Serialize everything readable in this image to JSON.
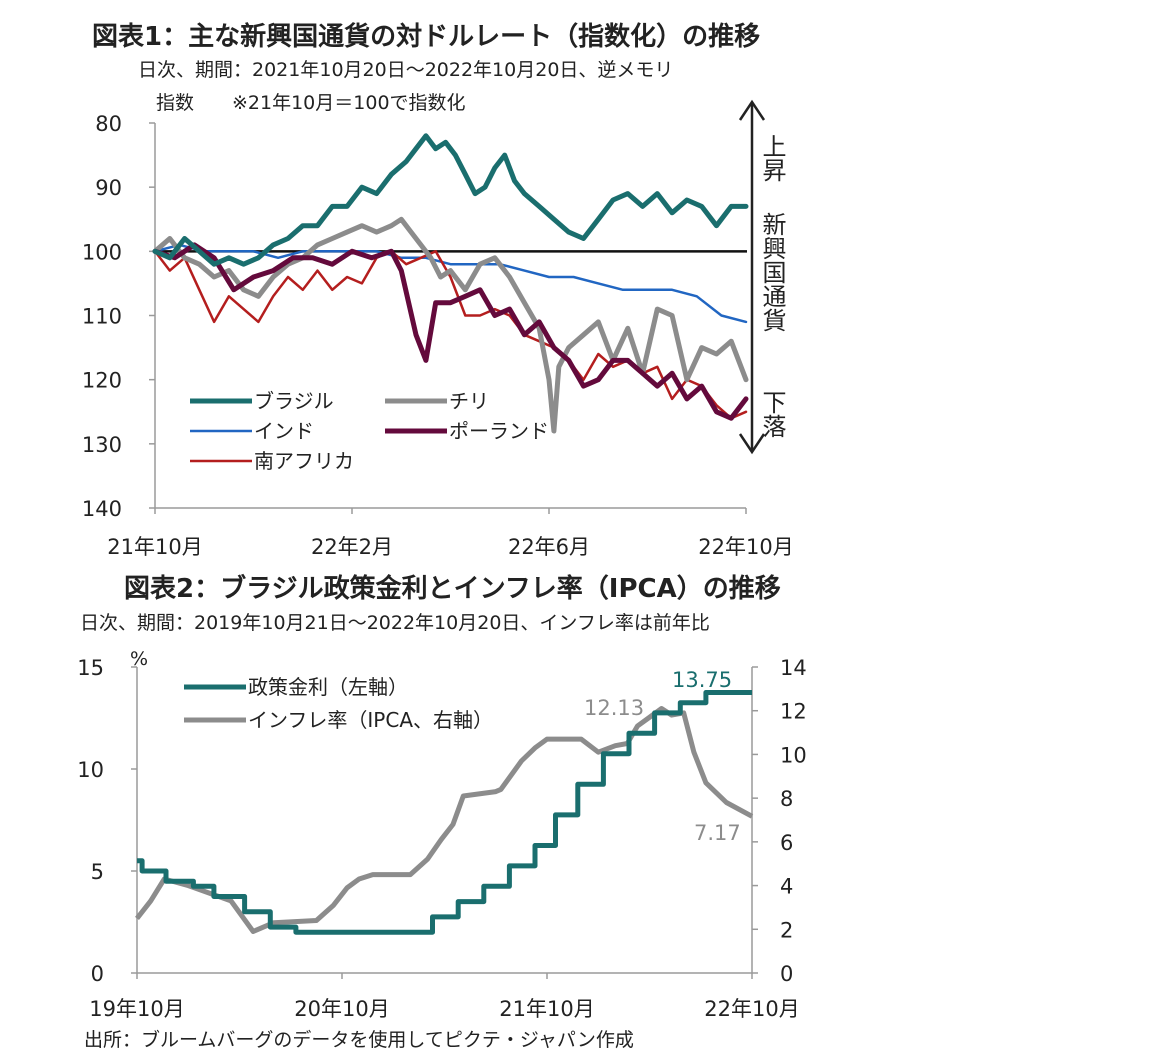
{
  "chart_data": [
    {
      "type": "line",
      "title": "図表1：主な新興国通貨の対ドルレート（指数化）の推移",
      "subtitle": "日次、期間：2021年10月20日～2022年10月20日、逆メモリ",
      "ylabel": "指数　　※21年10月＝100で指数化",
      "yaxis_inverted": true,
      "ylim": [
        80,
        140
      ],
      "yticks": [
        "80",
        "90",
        "100",
        "110",
        "120",
        "130",
        "140"
      ],
      "xlim": [
        0,
        12
      ],
      "xticks": [
        {
          "x": 0,
          "label": "21年10月"
        },
        {
          "x": 4,
          "label": "22年2月"
        },
        {
          "x": 8,
          "label": "22年6月"
        },
        {
          "x": 12,
          "label": "22年10月"
        }
      ],
      "reference_line": 100,
      "side_annotation": {
        "top": "上昇",
        "middle": "新興国通貨",
        "bottom": "下落"
      },
      "series": [
        {
          "name": "ブラジル",
          "color": "#1a6e6e",
          "width": 5,
          "points": [
            [
              0,
              100
            ],
            [
              0.3,
              101
            ],
            [
              0.6,
              98
            ],
            [
              0.9,
              100
            ],
            [
              1.2,
              102
            ],
            [
              1.5,
              101
            ],
            [
              1.8,
              102
            ],
            [
              2.1,
              101
            ],
            [
              2.4,
              99
            ],
            [
              2.7,
              98
            ],
            [
              3.0,
              96
            ],
            [
              3.3,
              96
            ],
            [
              3.6,
              93
            ],
            [
              3.9,
              93
            ],
            [
              4.2,
              90
            ],
            [
              4.5,
              91
            ],
            [
              4.8,
              88
            ],
            [
              5.1,
              86
            ],
            [
              5.3,
              84
            ],
            [
              5.5,
              82
            ],
            [
              5.7,
              84
            ],
            [
              5.9,
              83
            ],
            [
              6.1,
              85
            ],
            [
              6.3,
              88
            ],
            [
              6.5,
              91
            ],
            [
              6.7,
              90
            ],
            [
              6.9,
              87
            ],
            [
              7.1,
              85
            ],
            [
              7.3,
              89
            ],
            [
              7.5,
              91
            ],
            [
              7.8,
              93
            ],
            [
              8.1,
              95
            ],
            [
              8.4,
              97
            ],
            [
              8.7,
              98
            ],
            [
              9.0,
              95
            ],
            [
              9.3,
              92
            ],
            [
              9.6,
              91
            ],
            [
              9.9,
              93
            ],
            [
              10.2,
              91
            ],
            [
              10.5,
              94
            ],
            [
              10.8,
              92
            ],
            [
              11.1,
              93
            ],
            [
              11.4,
              96
            ],
            [
              11.7,
              93
            ],
            [
              12,
              93
            ]
          ]
        },
        {
          "name": "チリ",
          "color": "#8c8c8c",
          "width": 5,
          "points": [
            [
              0,
              100
            ],
            [
              0.3,
              98
            ],
            [
              0.6,
              101
            ],
            [
              0.9,
              102
            ],
            [
              1.2,
              104
            ],
            [
              1.5,
              103
            ],
            [
              1.8,
              106
            ],
            [
              2.1,
              107
            ],
            [
              2.4,
              104
            ],
            [
              2.7,
              102
            ],
            [
              3.0,
              101
            ],
            [
              3.3,
              99
            ],
            [
              3.6,
              98
            ],
            [
              3.9,
              97
            ],
            [
              4.2,
              96
            ],
            [
              4.5,
              97
            ],
            [
              4.8,
              96
            ],
            [
              5.0,
              95
            ],
            [
              5.2,
              97
            ],
            [
              5.4,
              99
            ],
            [
              5.6,
              101
            ],
            [
              5.8,
              104
            ],
            [
              6.0,
              103
            ],
            [
              6.3,
              106
            ],
            [
              6.6,
              102
            ],
            [
              6.9,
              101
            ],
            [
              7.2,
              104
            ],
            [
              7.5,
              108
            ],
            [
              7.8,
              112
            ],
            [
              8.0,
              120
            ],
            [
              8.1,
              128
            ],
            [
              8.2,
              118
            ],
            [
              8.4,
              115
            ],
            [
              8.7,
              113
            ],
            [
              9.0,
              111
            ],
            [
              9.3,
              117
            ],
            [
              9.6,
              112
            ],
            [
              9.9,
              119
            ],
            [
              10.2,
              109
            ],
            [
              10.5,
              110
            ],
            [
              10.8,
              120
            ],
            [
              11.1,
              115
            ],
            [
              11.4,
              116
            ],
            [
              11.7,
              114
            ],
            [
              12,
              120
            ]
          ]
        },
        {
          "name": "インド",
          "color": "#2166c2",
          "width": 2.5,
          "points": [
            [
              0,
              100
            ],
            [
              0.5,
              99
            ],
            [
              1,
              100
            ],
            [
              1.5,
              100
            ],
            [
              2,
              100
            ],
            [
              2.5,
              101
            ],
            [
              3,
              100
            ],
            [
              3.5,
              100
            ],
            [
              4,
              100
            ],
            [
              4.5,
              100
            ],
            [
              5,
              101
            ],
            [
              5.5,
              101
            ],
            [
              6,
              102
            ],
            [
              6.5,
              102
            ],
            [
              7,
              102
            ],
            [
              7.5,
              103
            ],
            [
              8,
              104
            ],
            [
              8.5,
              104
            ],
            [
              9,
              105
            ],
            [
              9.5,
              106
            ],
            [
              10,
              106
            ],
            [
              10.5,
              106
            ],
            [
              11,
              107
            ],
            [
              11.5,
              110
            ],
            [
              12,
              111
            ]
          ]
        },
        {
          "name": "ポーランド",
          "color": "#640a3c",
          "width": 5,
          "points": [
            [
              0,
              100
            ],
            [
              0.4,
              101
            ],
            [
              0.8,
              99
            ],
            [
              1.2,
              101
            ],
            [
              1.6,
              106
            ],
            [
              2.0,
              104
            ],
            [
              2.4,
              103
            ],
            [
              2.8,
              101
            ],
            [
              3.2,
              101
            ],
            [
              3.6,
              102
            ],
            [
              4.0,
              100
            ],
            [
              4.4,
              101
            ],
            [
              4.8,
              100
            ],
            [
              5.0,
              103
            ],
            [
              5.3,
              113
            ],
            [
              5.5,
              117
            ],
            [
              5.7,
              108
            ],
            [
              6.0,
              108
            ],
            [
              6.3,
              107
            ],
            [
              6.6,
              106
            ],
            [
              6.9,
              110
            ],
            [
              7.2,
              109
            ],
            [
              7.5,
              113
            ],
            [
              7.8,
              111
            ],
            [
              8.1,
              115
            ],
            [
              8.4,
              117
            ],
            [
              8.7,
              121
            ],
            [
              9.0,
              120
            ],
            [
              9.3,
              117
            ],
            [
              9.6,
              117
            ],
            [
              9.9,
              119
            ],
            [
              10.2,
              121
            ],
            [
              10.5,
              119
            ],
            [
              10.8,
              123
            ],
            [
              11.1,
              121
            ],
            [
              11.4,
              125
            ],
            [
              11.7,
              126
            ],
            [
              12,
              123
            ]
          ]
        },
        {
          "name": "南アフリカ",
          "color": "#b41e1e",
          "width": 2.5,
          "points": [
            [
              0,
              100
            ],
            [
              0.3,
              103
            ],
            [
              0.6,
              101
            ],
            [
              0.9,
              106
            ],
            [
              1.2,
              111
            ],
            [
              1.5,
              107
            ],
            [
              1.8,
              109
            ],
            [
              2.1,
              111
            ],
            [
              2.4,
              107
            ],
            [
              2.7,
              104
            ],
            [
              3.0,
              106
            ],
            [
              3.3,
              103
            ],
            [
              3.6,
              106
            ],
            [
              3.9,
              104
            ],
            [
              4.2,
              105
            ],
            [
              4.5,
              101
            ],
            [
              4.8,
              100
            ],
            [
              5.1,
              102
            ],
            [
              5.4,
              101
            ],
            [
              5.7,
              100
            ],
            [
              6.0,
              104
            ],
            [
              6.3,
              110
            ],
            [
              6.6,
              110
            ],
            [
              6.9,
              109
            ],
            [
              7.2,
              110
            ],
            [
              7.5,
              113
            ],
            [
              7.8,
              114
            ],
            [
              8.1,
              115
            ],
            [
              8.4,
              117
            ],
            [
              8.7,
              120
            ],
            [
              9.0,
              116
            ],
            [
              9.3,
              118
            ],
            [
              9.6,
              117
            ],
            [
              9.9,
              119
            ],
            [
              10.2,
              118
            ],
            [
              10.5,
              123
            ],
            [
              10.8,
              120
            ],
            [
              11.1,
              121
            ],
            [
              11.4,
              124
            ],
            [
              11.7,
              126
            ],
            [
              12,
              125
            ]
          ]
        }
      ]
    },
    {
      "type": "line",
      "title": "図表2：ブラジル政策金利とインフレ率（IPCA）の推移",
      "subtitle": "日次、期間：2019年10月21日～2022年10月20日、インフレ率は前年比",
      "ylabel_left": "%",
      "ylim_left": [
        0,
        15
      ],
      "yticks_left": [
        "0",
        "5",
        "10",
        "15"
      ],
      "ylim_right": [
        0,
        14
      ],
      "yticks_right": [
        "0",
        "2",
        "4",
        "6",
        "8",
        "10",
        "12",
        "14"
      ],
      "xlim": [
        0,
        36
      ],
      "xticks": [
        {
          "x": 0,
          "label": "19年10月"
        },
        {
          "x": 12,
          "label": "20年10月"
        },
        {
          "x": 24,
          "label": "21年10月"
        },
        {
          "x": 36,
          "label": "22年10月"
        }
      ],
      "annotations": [
        {
          "text": "13.75",
          "series": "政策金利（左軸）",
          "color": "#1a6e6e"
        },
        {
          "text": "12.13",
          "series": "インフレ率（IPCA、右軸）",
          "color": "#8c8c8c"
        },
        {
          "text": "7.17",
          "series": "インフレ率（IPCA、右軸）",
          "color": "#8c8c8c"
        }
      ],
      "source": "出所：ブルームバーグのデータを使用してピクテ・ジャパン作成",
      "series": [
        {
          "name": "政策金利（左軸）",
          "axis": "left",
          "color": "#1a6e6e",
          "width": 5,
          "step": true,
          "points": [
            [
              0,
              5.5
            ],
            [
              0.3,
              5.0
            ],
            [
              1.7,
              4.5
            ],
            [
              3.3,
              4.25
            ],
            [
              4.5,
              3.75
            ],
            [
              6.3,
              3.0
            ],
            [
              7.8,
              2.25
            ],
            [
              9.3,
              2.0
            ],
            [
              17.3,
              2.75
            ],
            [
              18.8,
              3.5
            ],
            [
              20.3,
              4.25
            ],
            [
              21.8,
              5.25
            ],
            [
              23.3,
              6.25
            ],
            [
              24.5,
              7.75
            ],
            [
              25.8,
              9.25
            ],
            [
              27.3,
              10.75
            ],
            [
              28.8,
              11.75
            ],
            [
              30.3,
              12.75
            ],
            [
              31.8,
              13.25
            ],
            [
              33.3,
              13.75
            ],
            [
              36,
              13.75
            ]
          ]
        },
        {
          "name": "インフレ率（IPCA、右軸）",
          "axis": "right",
          "color": "#8c8c8c",
          "width": 5,
          "points": [
            [
              0,
              2.5
            ],
            [
              0.8,
              3.3
            ],
            [
              1.6,
              4.3
            ],
            [
              3,
              4.0
            ],
            [
              5.5,
              3.3
            ],
            [
              6.8,
              1.9
            ],
            [
              8,
              2.3
            ],
            [
              10.5,
              2.4
            ],
            [
              11.5,
              3.1
            ],
            [
              12.3,
              3.9
            ],
            [
              13,
              4.3
            ],
            [
              13.8,
              4.5
            ],
            [
              15.5,
              4.5
            ],
            [
              16,
              4.5
            ],
            [
              17,
              5.2
            ],
            [
              17.8,
              6.1
            ],
            [
              18.5,
              6.8
            ],
            [
              19.1,
              8.1
            ],
            [
              21,
              8.3
            ],
            [
              21.3,
              8.4
            ],
            [
              22.5,
              9.7
            ],
            [
              23.3,
              10.3
            ],
            [
              24,
              10.7
            ],
            [
              25.5,
              10.7
            ],
            [
              26,
              10.7
            ],
            [
              27,
              10.1
            ],
            [
              28,
              10.4
            ],
            [
              28.7,
              10.5
            ],
            [
              29.3,
              11.3
            ],
            [
              30,
              11.7
            ],
            [
              30.7,
              12.1
            ],
            [
              31.3,
              11.8
            ],
            [
              32,
              11.9
            ],
            [
              32.6,
              10.1
            ],
            [
              33.3,
              8.7
            ],
            [
              34.5,
              7.8
            ],
            [
              36,
              7.17
            ]
          ]
        }
      ]
    }
  ]
}
